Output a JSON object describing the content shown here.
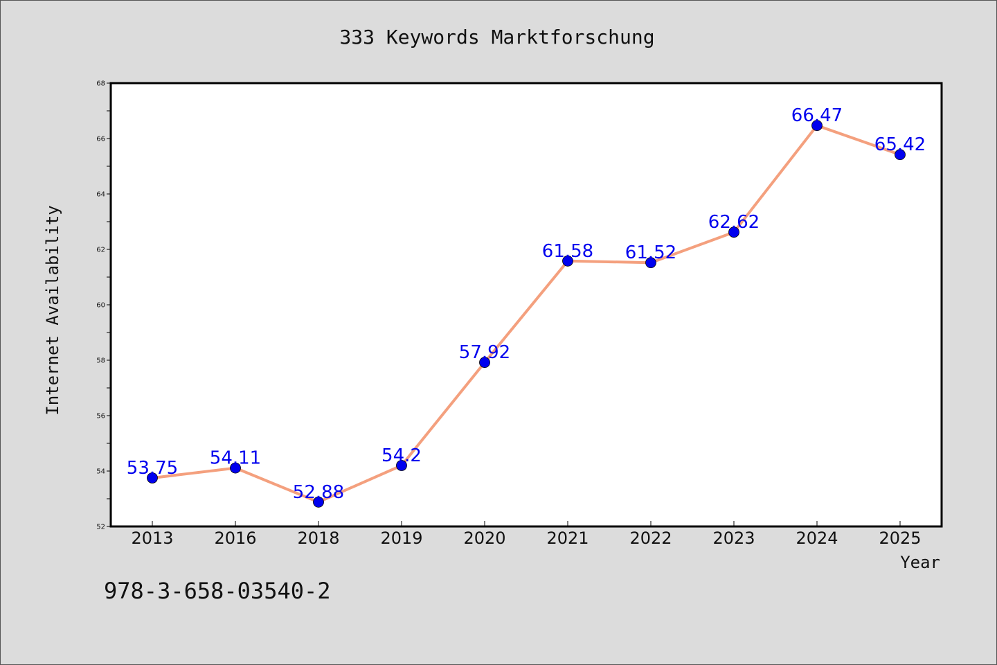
{
  "chart_data": {
    "type": "line",
    "title": "333 Keywords Marktforschung",
    "xlabel": "Year",
    "ylabel": "Internet Availability",
    "categories": [
      "2013",
      "2016",
      "2018",
      "2019",
      "2020",
      "2021",
      "2022",
      "2023",
      "2024",
      "2025"
    ],
    "series": [
      {
        "values": [
          53.75,
          54.11,
          52.88,
          54.2,
          57.92,
          61.58,
          61.52,
          62.62,
          66.47,
          65.42
        ],
        "data_labels": [
          "53.75",
          "54.11",
          "52.88",
          "54.2",
          "57.92",
          "61.58",
          "61.52",
          "62.62",
          "66.47",
          "65.42"
        ]
      }
    ],
    "ylim": [
      52,
      68
    ],
    "yticks": [
      "52",
      "54",
      "56",
      "58",
      "60",
      "62",
      "64",
      "66",
      "68"
    ],
    "grid": false,
    "colors": {
      "line": "#f4a07e",
      "marker": "#0000ee",
      "label": "#0000ee",
      "background": "#dcdcdc",
      "plot_background": "#ffffff"
    }
  },
  "footer": {
    "isbn": "978-3-658-03540-2"
  }
}
